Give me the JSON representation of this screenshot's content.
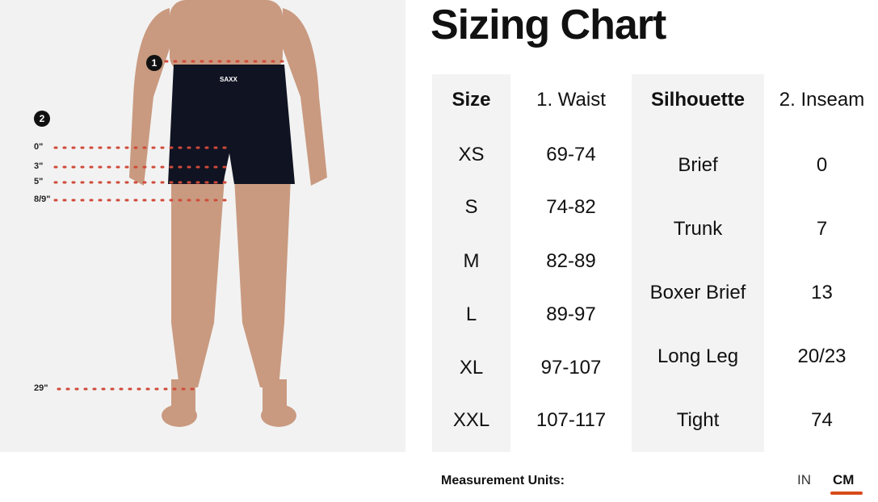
{
  "title": "Sizing Chart",
  "diagram": {
    "badges": [
      "1",
      "2"
    ],
    "inseam_labels": [
      "0\"",
      "3\"",
      "5\"",
      "8/9\"",
      "29\""
    ],
    "brand_label": "SAXX"
  },
  "table": {
    "size_header": "Size",
    "waist_header": "1. Waist",
    "silhouette_header": "Silhouette",
    "inseam_header": "2. Inseam",
    "sizes": [
      {
        "size": "XS",
        "waist": "69-74"
      },
      {
        "size": "S",
        "waist": "74-82"
      },
      {
        "size": "M",
        "waist": "82-89"
      },
      {
        "size": "L",
        "waist": "89-97"
      },
      {
        "size": "XL",
        "waist": "97-107"
      },
      {
        "size": "XXL",
        "waist": "107-117"
      }
    ],
    "silhouettes": [
      {
        "name": "Brief",
        "inseam": "0"
      },
      {
        "name": "Trunk",
        "inseam": "7"
      },
      {
        "name": "Boxer Brief",
        "inseam": "13"
      },
      {
        "name": "Long Leg",
        "inseam": "20/23"
      },
      {
        "name": "Tight",
        "inseam": "74"
      }
    ]
  },
  "units": {
    "label": "Measurement Units:",
    "options": [
      "IN",
      "CM"
    ],
    "selected": "CM",
    "accent": "#d84a1b"
  }
}
